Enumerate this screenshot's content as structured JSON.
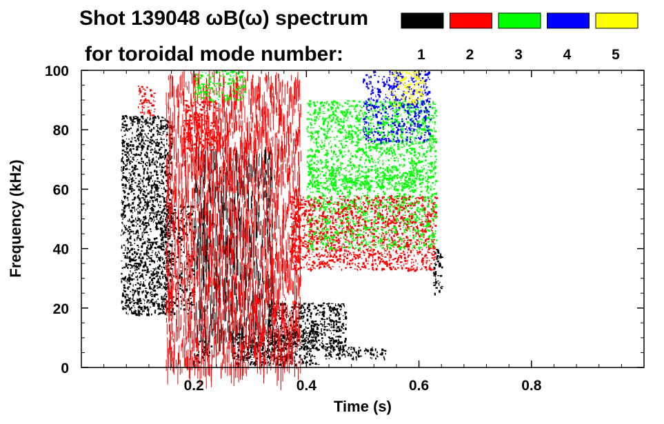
{
  "chart_data": {
    "type": "heatmap",
    "title_line1": "Shot 139048 ωB(ω) spectrum",
    "title_line2": "for toroidal mode number:",
    "xlabel": "Time (s)",
    "ylabel": "Frequency (kHz)",
    "xlim": [
      0.0,
      1.0
    ],
    "ylim": [
      0,
      100
    ],
    "xticks": [
      {
        "value": 0.2,
        "label": "0.2"
      },
      {
        "value": 0.4,
        "label": "0.4"
      },
      {
        "value": 0.6,
        "label": "0.6"
      },
      {
        "value": 0.8,
        "label": "0.8"
      }
    ],
    "yticks": [
      {
        "value": 0,
        "label": "0"
      },
      {
        "value": 20,
        "label": "20"
      },
      {
        "value": 40,
        "label": "40"
      },
      {
        "value": 60,
        "label": "60"
      },
      {
        "value": 80,
        "label": "80"
      },
      {
        "value": 100,
        "label": "100"
      }
    ],
    "legend": [
      {
        "label": "1",
        "color": "#000000"
      },
      {
        "label": "2",
        "color": "#ff0000"
      },
      {
        "label": "3",
        "color": "#00ff00"
      },
      {
        "label": "4",
        "color": "#0000ff"
      },
      {
        "label": "5",
        "color": "#ffff00"
      }
    ],
    "regions": [
      {
        "name": "n1-early-band",
        "mode": "1",
        "t": [
          0.07,
          0.16
        ],
        "f": [
          18,
          85
        ],
        "density": 0.9
      },
      {
        "name": "n1-early-tail",
        "mode": "1",
        "t": [
          0.14,
          0.2
        ],
        "f": [
          18,
          55
        ],
        "density": 0.5
      },
      {
        "name": "n1-low-dip",
        "mode": "1",
        "t": [
          0.2,
          0.23
        ],
        "f": [
          2,
          10
        ],
        "density": 0.7
      },
      {
        "name": "n1-low-burst",
        "mode": "1",
        "t": [
          0.27,
          0.42
        ],
        "f": [
          1,
          12
        ],
        "density": 0.95
      },
      {
        "name": "n1-low-mid",
        "mode": "1",
        "t": [
          0.33,
          0.47
        ],
        "f": [
          6,
          22
        ],
        "density": 0.9
      },
      {
        "name": "n1-low-late",
        "mode": "1",
        "t": [
          0.43,
          0.54
        ],
        "f": [
          3,
          7
        ],
        "density": 0.8
      },
      {
        "name": "n1-spikes",
        "mode": "1",
        "t": [
          0.2,
          0.34
        ],
        "f": [
          10,
          75
        ],
        "density": 0.25
      },
      {
        "name": "n1-final",
        "mode": "1",
        "t": [
          0.625,
          0.64
        ],
        "f": [
          25,
          40
        ],
        "density": 0.8
      },
      {
        "name": "n2-early",
        "mode": "2",
        "t": [
          0.1,
          0.13
        ],
        "f": [
          85,
          95
        ],
        "density": 0.7
      },
      {
        "name": "n2-vertical",
        "mode": "2",
        "t": [
          0.15,
          0.39
        ],
        "f": [
          0,
          100
        ],
        "density": 0.3
      },
      {
        "name": "n2-blob",
        "mode": "2",
        "t": [
          0.18,
          0.24
        ],
        "f": [
          73,
          90
        ],
        "density": 0.8
      },
      {
        "name": "n2-mid",
        "mode": "2",
        "t": [
          0.37,
          0.63
        ],
        "f": [
          33,
          58
        ],
        "density": 0.8
      },
      {
        "name": "n3-upper",
        "mode": "3",
        "t": [
          0.4,
          0.63
        ],
        "f": [
          60,
          90
        ],
        "density": 0.7
      },
      {
        "name": "n3-mid",
        "mode": "3",
        "t": [
          0.4,
          0.63
        ],
        "f": [
          40,
          68
        ],
        "density": 0.5
      },
      {
        "name": "n3-early",
        "mode": "3",
        "t": [
          0.2,
          0.29
        ],
        "f": [
          90,
          100
        ],
        "density": 0.6
      },
      {
        "name": "n4-band",
        "mode": "4",
        "t": [
          0.5,
          0.62
        ],
        "f": [
          76,
          100
        ],
        "density": 0.6
      },
      {
        "name": "n5-band",
        "mode": "5",
        "t": [
          0.55,
          0.61
        ],
        "f": [
          88,
          100
        ],
        "density": 0.6
      }
    ]
  }
}
